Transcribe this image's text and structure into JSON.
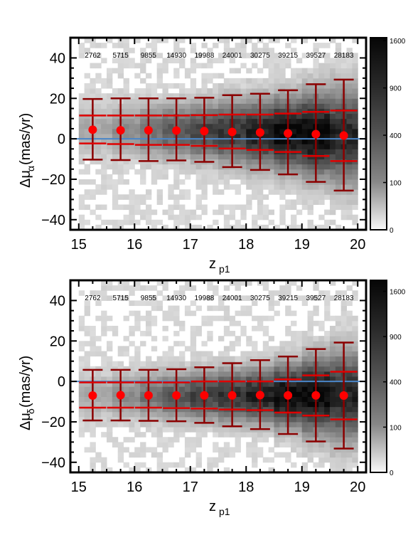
{
  "chart_data": [
    {
      "type": "scatter",
      "panel": "top",
      "xlabel_main": "z",
      "xlabel_sub": "p1",
      "ylabel_prefix": "Δμ",
      "ylabel_sub": "α",
      "ylabel_suffix": " (mas/yr)",
      "xlim": [
        14.85,
        20.15
      ],
      "ylim": [
        -45,
        50
      ],
      "xticks": [
        15,
        16,
        17,
        18,
        19,
        20
      ],
      "yticks": [
        40,
        20,
        0,
        -20,
        -40
      ],
      "ytick_labels": [
        "40",
        "20",
        "0",
        "−20",
        "−40"
      ],
      "reference_line_y": 0,
      "reference_line_color": "#4a86c8",
      "points_color": "#ff0000",
      "errorbar_color": "#8b0000",
      "x": [
        15.25,
        15.75,
        16.25,
        16.75,
        17.25,
        17.75,
        18.25,
        18.75,
        19.25,
        19.75
      ],
      "counts": [
        "2762",
        "5715",
        "9855",
        "14930",
        "19988",
        "24001",
        "30275",
        "39215",
        "39527",
        "28183"
      ],
      "median": [
        4.5,
        4.2,
        4.2,
        4.1,
        3.8,
        3.4,
        3.1,
        2.7,
        2.3,
        1.6
      ],
      "inner_high": [
        11.5,
        11.5,
        11.5,
        11.5,
        11.7,
        12,
        12,
        12.5,
        13.3,
        14
      ],
      "inner_low": [
        -2.3,
        -2.6,
        -3.0,
        -3.0,
        -3.5,
        -4.8,
        -5.5,
        -6.5,
        -8.5,
        -11
      ],
      "outer_high": [
        19.7,
        20,
        20,
        20,
        20.3,
        21.6,
        22.3,
        24,
        27,
        29.3
      ],
      "outer_low": [
        -10.3,
        -10.5,
        -11,
        -10.7,
        -11.4,
        -14,
        -15.4,
        -17.6,
        -21.3,
        -25.6
      ],
      "colorbar_ticks": [
        "1600",
        "900",
        "400",
        "100",
        "0"
      ],
      "colorbar_max": 1650
    },
    {
      "type": "scatter",
      "panel": "bottom",
      "xlabel_main": "z",
      "xlabel_sub": "p1",
      "ylabel_prefix": "Δμ",
      "ylabel_sub": "δ",
      "ylabel_suffix": " (mas/yr)",
      "xlim": [
        14.85,
        20.15
      ],
      "ylim": [
        -45,
        50
      ],
      "xticks": [
        15,
        16,
        17,
        18,
        19,
        20
      ],
      "yticks": [
        40,
        20,
        0,
        -20,
        -40
      ],
      "ytick_labels": [
        "40",
        "20",
        "0",
        "−20",
        "−40"
      ],
      "reference_line_y": 0,
      "reference_line_color": "#4a86c8",
      "points_color": "#ff0000",
      "errorbar_color": "#8b0000",
      "x": [
        15.25,
        15.75,
        16.25,
        16.75,
        17.25,
        17.75,
        18.25,
        18.75,
        19.25,
        19.75
      ],
      "counts": [
        "2762",
        "5715",
        "9855",
        "14930",
        "19988",
        "24001",
        "30275",
        "39215",
        "39527",
        "28183"
      ],
      "median": [
        -7,
        -6.8,
        -6.9,
        -6.9,
        -6.9,
        -6.9,
        -6.8,
        -6.9,
        -6.9,
        -7.0
      ],
      "inner_high": [
        -0.5,
        -0.5,
        -0.5,
        -0.5,
        0,
        0,
        0,
        1,
        3,
        4.8
      ],
      "inner_low": [
        -13,
        -13,
        -13,
        -13.2,
        -13.4,
        -13.9,
        -14.2,
        -15.4,
        -16.9,
        -18.8
      ],
      "outer_high": [
        5.7,
        5.7,
        5.7,
        6,
        7,
        9,
        10.5,
        12.3,
        16,
        19.2
      ],
      "outer_low": [
        -19.3,
        -19.3,
        -19.5,
        -19.7,
        -20.5,
        -22.2,
        -23.6,
        -26,
        -29.7,
        -33.2
      ],
      "colorbar_ticks": [
        "1600",
        "900",
        "400",
        "100",
        "0"
      ],
      "colorbar_max": 1800
    }
  ]
}
